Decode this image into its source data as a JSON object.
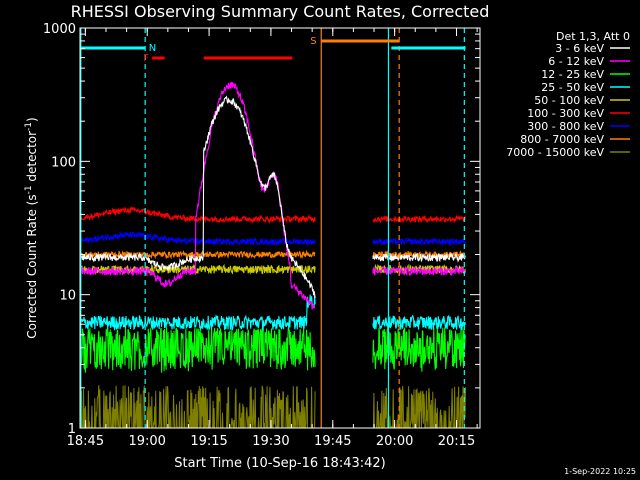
{
  "title": "RHESSI Observing Summary Count Rates, Corrected",
  "footer_date": "1-Sep-2022 10:25",
  "chart_data": {
    "type": "line",
    "title": "RHESSI Observing Summary Count Rates, Corrected",
    "xlabel": "Start Time (10-Sep-16 18:43:42)",
    "ylabel_main": "Corrected Count Rate (s",
    "ylabel_sup1": "-1",
    "ylabel_mid": " detector",
    "ylabel_sup2": "-1",
    "ylabel_end": ")",
    "y_scale": "log",
    "ylim": [
      1,
      1000
    ],
    "xlim_minutes": [
      0,
      97
    ],
    "x_ticks": [
      {
        "label": "18:45",
        "minute": 1.3
      },
      {
        "label": "19:00",
        "minute": 16.3
      },
      {
        "label": "19:15",
        "minute": 31.3
      },
      {
        "label": "19:30",
        "minute": 46.3
      },
      {
        "label": "19:45",
        "minute": 61.3
      },
      {
        "label": "20:00",
        "minute": 76.3
      },
      {
        "label": "20:15",
        "minute": 91.3
      }
    ],
    "y_ticks": [
      {
        "label": "1",
        "value": 1
      },
      {
        "label": "10",
        "value": 10
      },
      {
        "label": "100",
        "value": 100
      },
      {
        "label": "1000",
        "value": 1000
      }
    ],
    "legend_header": "Det 1,3, Att 0",
    "series": [
      {
        "name": "3 - 6 keV",
        "color": "#ffffff",
        "base": 20,
        "noise": 0.06
      },
      {
        "name": "6 - 12 keV",
        "color": "#ff00ff",
        "base": 15,
        "noise": 0.07
      },
      {
        "name": "12 - 25 keV",
        "color": "#00ff00",
        "base": 4.2,
        "noise": 0.22
      },
      {
        "name": "25 - 50 keV",
        "color": "#00ffff",
        "base": 6.2,
        "noise": 0.12
      },
      {
        "name": "50 - 100 keV",
        "color": "#cccc00",
        "base": 15.5,
        "noise": 0.07
      },
      {
        "name": "100 - 300 keV",
        "color": "#ff0000",
        "base": 37,
        "noise": 0.05
      },
      {
        "name": "300 - 800 keV",
        "color": "#0000ff",
        "base": 25,
        "noise": 0.05
      },
      {
        "name": "800 - 7000 keV",
        "color": "#ff8000",
        "base": 20,
        "noise": 0.05
      },
      {
        "name": "7000 - 15000 keV",
        "color": "#808000",
        "base": 1.8,
        "noise": 0.4
      }
    ],
    "flare_peak": {
      "series": "3 - 6 keV",
      "peak_value": 270,
      "peak_minute": 36,
      "second_peak_value": 70,
      "second_peak_minute": 47
    },
    "flare_peak_6_12": {
      "peak_value": 360,
      "peak_minute": 36.5,
      "second_peak_value": 75,
      "second_peak_minute": 47
    },
    "data_gaps_minutes": [
      [
        57,
        71
      ]
    ],
    "night_markers": {
      "label": "N",
      "start": 0,
      "end": 15.7
    },
    "night_markers_2": {
      "start": 75.5,
      "end": 93.5
    },
    "flare_bars": {
      "label": "F",
      "segments": [
        [
          17.5,
          20.5
        ],
        [
          30,
          51.5
        ]
      ]
    },
    "saa_bars": {
      "label": "S",
      "segments": [
        [
          58.5,
          77.5
        ]
      ]
    },
    "vertical_lines": [
      {
        "minute": 0.2,
        "color": "#00ffff",
        "style": "solid"
      },
      {
        "minute": 15.8,
        "color": "#00ffff",
        "style": "dashed"
      },
      {
        "minute": 58.5,
        "color": "#ff8000",
        "style": "solid"
      },
      {
        "minute": 74.8,
        "color": "#00ffff",
        "style": "solid"
      },
      {
        "minute": 77.4,
        "color": "#ff8000",
        "style": "dashed"
      },
      {
        "minute": 93.2,
        "color": "#00ffff",
        "style": "dashed"
      }
    ]
  }
}
